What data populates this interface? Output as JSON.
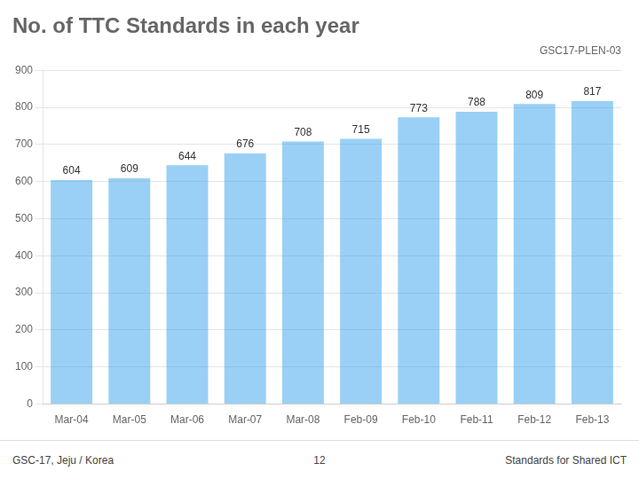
{
  "chart_data": {
    "type": "bar",
    "title": "No. of TTC Standards in each year",
    "subtitle": "GSC17-PLEN-03",
    "categories": [
      "Mar-04",
      "Mar-05",
      "Mar-06",
      "Mar-07",
      "Mar-08",
      "Feb-09",
      "Feb-10",
      "Feb-11",
      "Feb-12",
      "Feb-13"
    ],
    "values": [
      604,
      609,
      644,
      676,
      708,
      715,
      773,
      788,
      809,
      817
    ],
    "ylim": [
      0,
      900
    ],
    "yticks": [
      0,
      100,
      200,
      300,
      400,
      500,
      600,
      700,
      800,
      900
    ],
    "grid": true,
    "data_labels": true,
    "annotations": [
      "GSC-17, Jeju / Korea",
      "12",
      "Standards for Shared ICT"
    ]
  }
}
